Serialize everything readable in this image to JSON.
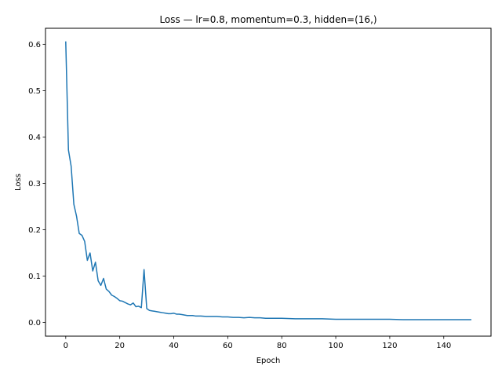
{
  "chart_data": {
    "type": "line",
    "title": "Loss — lr=0.8, momentum=0.3, hidden=(16,)",
    "xlabel": "Epoch",
    "ylabel": "Loss",
    "xlim": [
      -7.5,
      157.5
    ],
    "ylim": [
      -0.0295,
      0.6345
    ],
    "xticks": [
      0,
      20,
      40,
      60,
      80,
      100,
      120,
      140
    ],
    "yticks": [
      0.0,
      0.1,
      0.2,
      0.3,
      0.4,
      0.5,
      0.6
    ],
    "grid": false,
    "legend": "none",
    "series": [
      {
        "color": "#1f77b4",
        "x": [
          0,
          1,
          2,
          3,
          4,
          5,
          6,
          7,
          8,
          9,
          10,
          11,
          12,
          13,
          14,
          15,
          16,
          17,
          18,
          19,
          20,
          21,
          22,
          23,
          24,
          25,
          26,
          27,
          28,
          29,
          30,
          31,
          32,
          33,
          34,
          35,
          36,
          37,
          38,
          39,
          40,
          41,
          42,
          43,
          44,
          45,
          46,
          47,
          48,
          49,
          50,
          52,
          54,
          56,
          58,
          60,
          62,
          64,
          66,
          68,
          70,
          72,
          74,
          76,
          78,
          80,
          85,
          90,
          95,
          100,
          105,
          110,
          115,
          120,
          125,
          130,
          135,
          140,
          145,
          150
        ],
        "y": [
          0.605,
          0.372,
          0.337,
          0.255,
          0.229,
          0.192,
          0.188,
          0.175,
          0.134,
          0.15,
          0.111,
          0.13,
          0.09,
          0.08,
          0.095,
          0.072,
          0.067,
          0.059,
          0.056,
          0.052,
          0.047,
          0.046,
          0.043,
          0.04,
          0.038,
          0.042,
          0.034,
          0.035,
          0.032,
          0.114,
          0.03,
          0.026,
          0.025,
          0.024,
          0.023,
          0.022,
          0.021,
          0.02,
          0.019,
          0.019,
          0.02,
          0.018,
          0.018,
          0.017,
          0.016,
          0.015,
          0.015,
          0.015,
          0.014,
          0.014,
          0.014,
          0.013,
          0.013,
          0.013,
          0.012,
          0.012,
          0.011,
          0.011,
          0.01,
          0.011,
          0.01,
          0.01,
          0.009,
          0.009,
          0.009,
          0.009,
          0.008,
          0.008,
          0.008,
          0.007,
          0.007,
          0.007,
          0.007,
          0.007,
          0.006,
          0.006,
          0.006,
          0.006,
          0.006,
          0.006
        ]
      }
    ]
  }
}
